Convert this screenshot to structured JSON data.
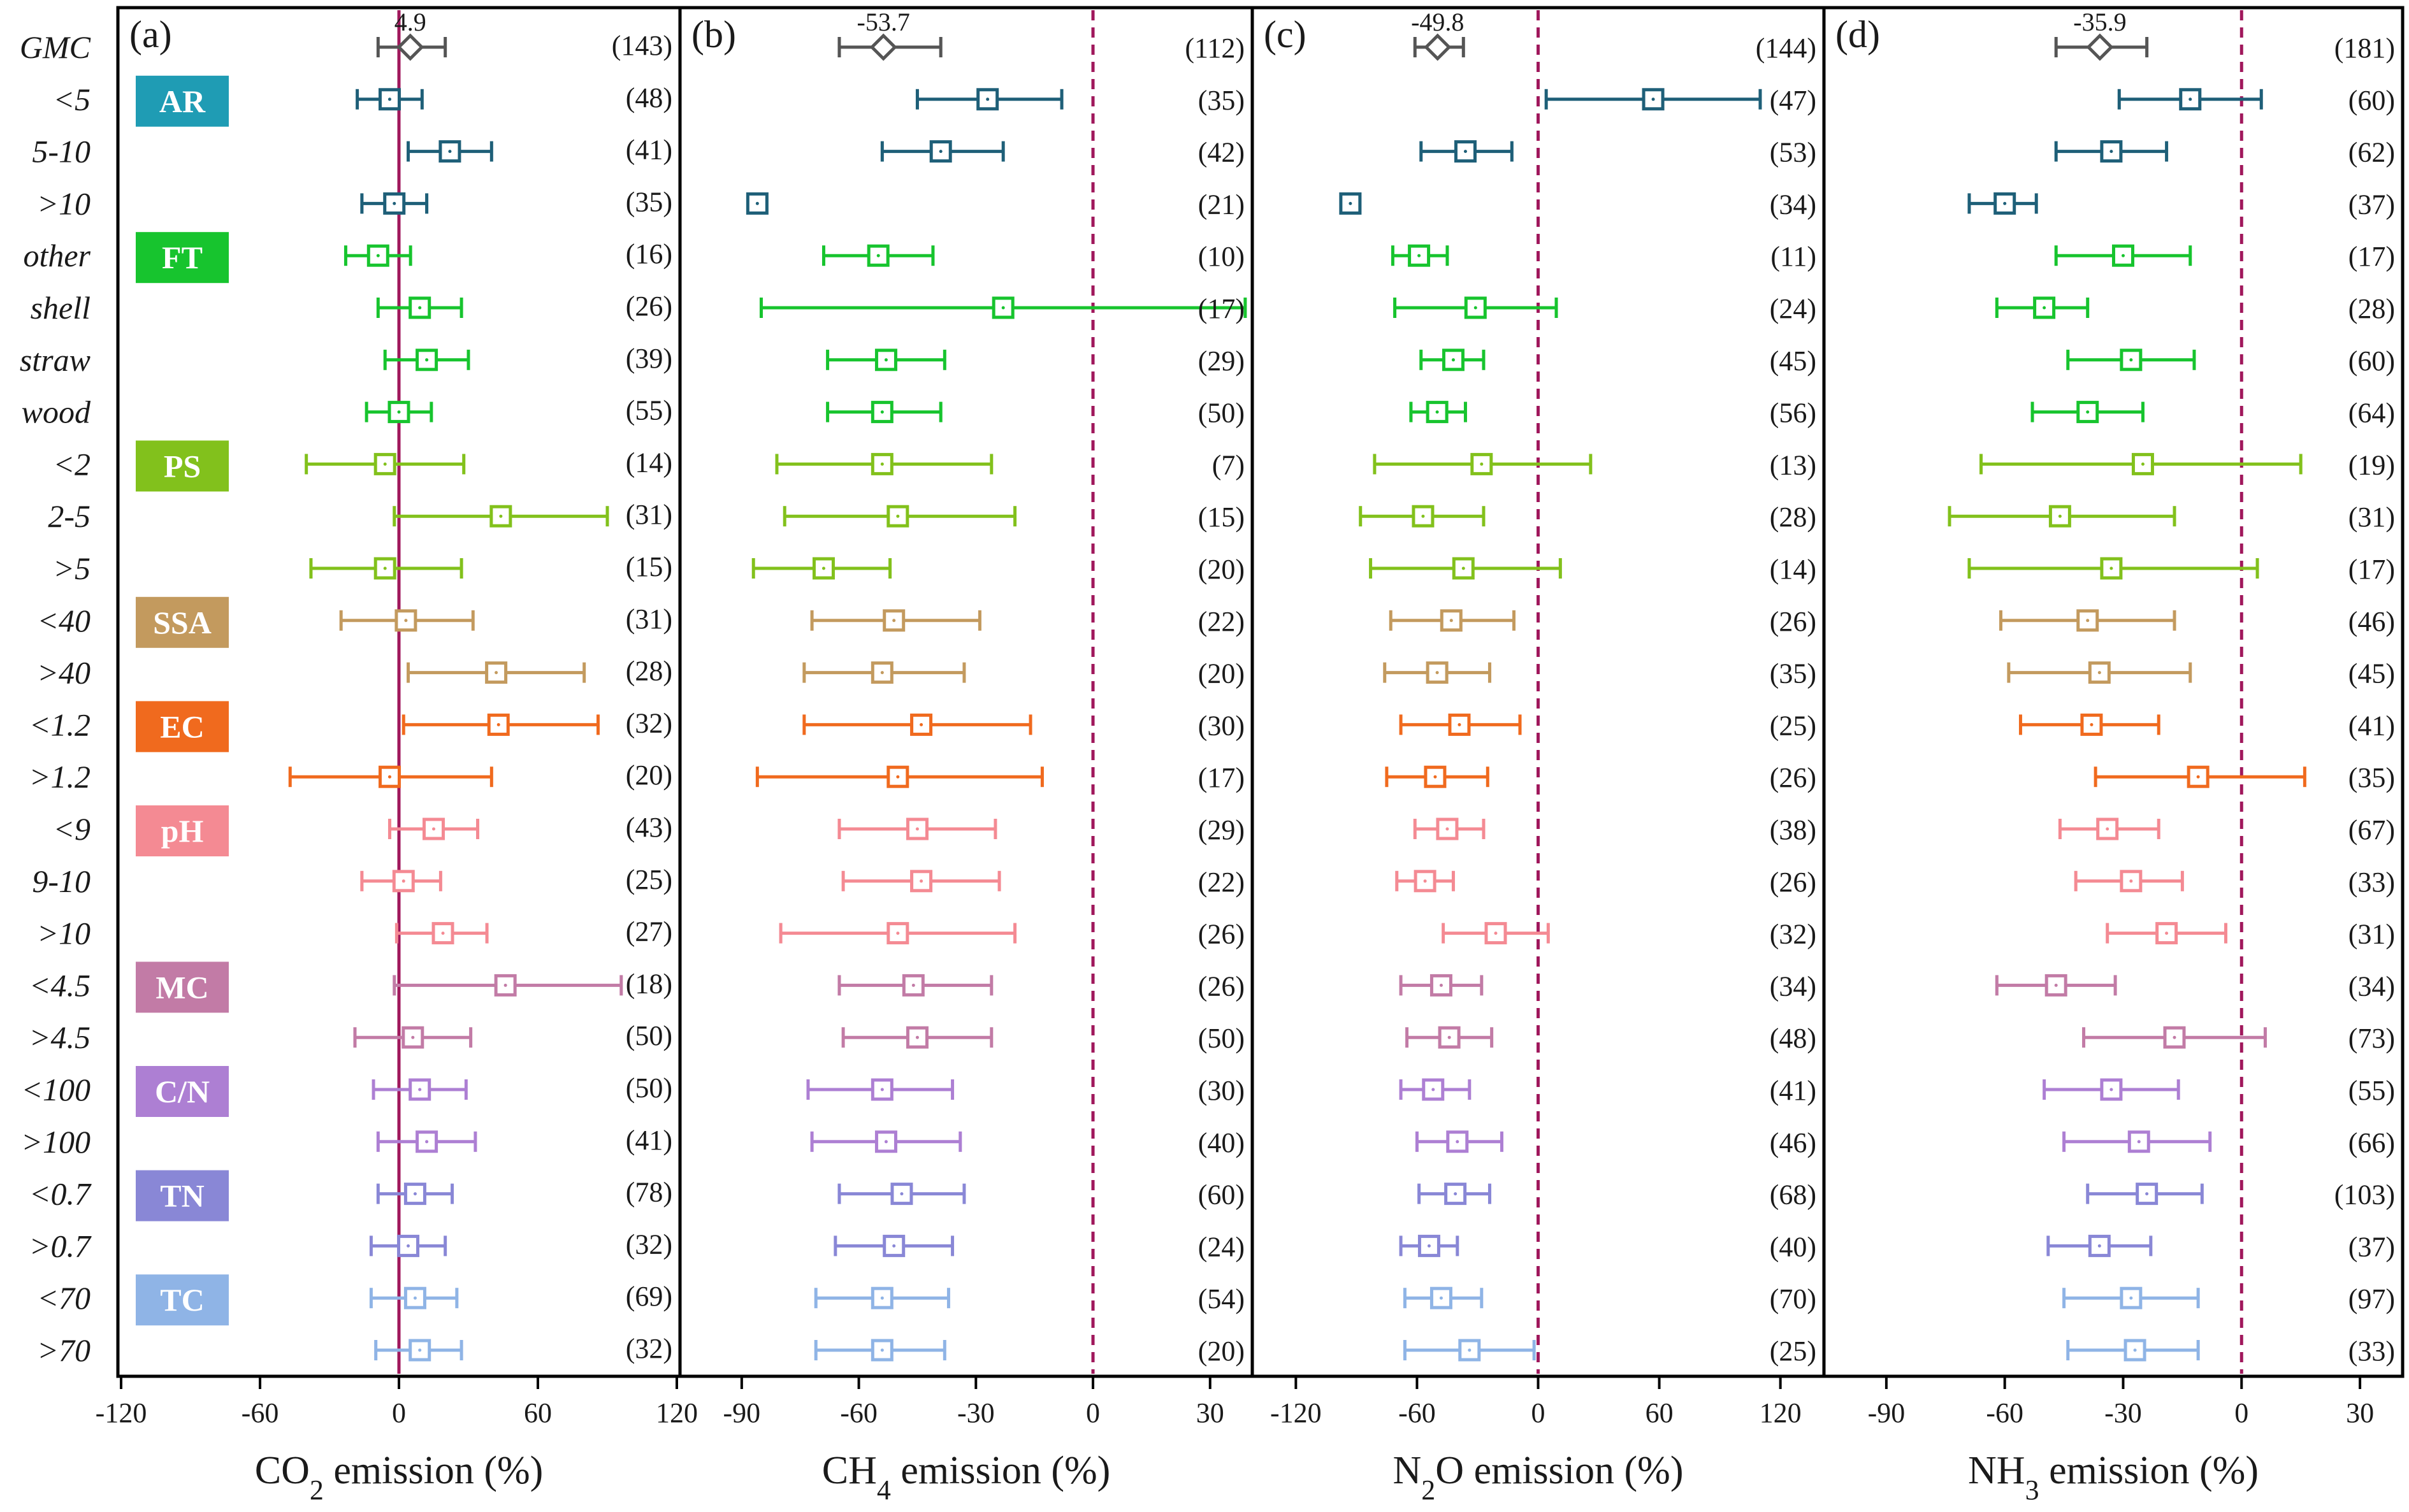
{
  "chart_data": {
    "type": "forest",
    "rows": [
      "GMC",
      "<5",
      "5-10",
      ">10",
      "other",
      "shell",
      "straw",
      "wood",
      "<2",
      "2-5",
      ">5",
      "<40",
      ">40",
      "<1.2",
      ">1.2",
      "<9",
      "9-10",
      ">10",
      "<4.5",
      ">4.5",
      "<100",
      ">100",
      "<0.7",
      ">0.7",
      "<70",
      ">70"
    ],
    "groups": [
      {
        "label": "AR",
        "row": 1,
        "color": "#1f9cb4"
      },
      {
        "label": "FT",
        "row": 4,
        "color": "#17c42e"
      },
      {
        "label": "PS",
        "row": 8,
        "color": "#82c11c"
      },
      {
        "label": "SSA",
        "row": 11,
        "color": "#c39a5e"
      },
      {
        "label": "EC",
        "row": 13,
        "color": "#f06a1e"
      },
      {
        "label": "pH",
        "row": 15,
        "color": "#f48a93"
      },
      {
        "label": "MC",
        "row": 18,
        "color": "#c27ba6"
      },
      {
        "label": "C/N",
        "row": 20,
        "color": "#ad7fd3"
      },
      {
        "label": "TN",
        "row": 22,
        "color": "#8987d6"
      },
      {
        "label": "TC",
        "row": 24,
        "color": "#8fb4e6"
      }
    ],
    "row_colors": [
      "#555555",
      "#1e5f78",
      "#1e5f78",
      "#1e5f78",
      "#17c42e",
      "#17c42e",
      "#17c42e",
      "#17c42e",
      "#82c11c",
      "#82c11c",
      "#82c11c",
      "#c39a5e",
      "#c39a5e",
      "#f06a1e",
      "#f06a1e",
      "#f48a93",
      "#f48a93",
      "#f48a93",
      "#c27ba6",
      "#c27ba6",
      "#ad7fd3",
      "#ad7fd3",
      "#8987d6",
      "#8987d6",
      "#8fb4e6",
      "#8fb4e6"
    ],
    "panels": [
      {
        "label": "(a)",
        "gas": "CO2",
        "xlabel_pre": "CO",
        "xlabel_sub": "2",
        "xlabel_post": " emission (%)",
        "xlim": [
          -120,
          120
        ],
        "ticks": [
          "-120",
          "-60",
          "0",
          "60",
          "120"
        ],
        "gmc_value": "4.9",
        "ref_line": "solid",
        "means": [
          4.9,
          -4,
          22,
          -2,
          -9,
          9,
          12,
          0,
          -6,
          44,
          -6,
          3,
          42,
          43,
          -4,
          15,
          2,
          19,
          46,
          6,
          9,
          12,
          7,
          4,
          7,
          9
        ],
        "lows": [
          -9,
          -18,
          4,
          -16,
          -23,
          -9,
          -6,
          -14,
          -40,
          -2,
          -38,
          -25,
          4,
          2,
          -47,
          -4,
          -16,
          -1,
          -2,
          -19,
          -11,
          -9,
          -9,
          -12,
          -12,
          -10
        ],
        "highs": [
          20,
          10,
          40,
          12,
          5,
          27,
          30,
          14,
          28,
          90,
          27,
          32,
          80,
          86,
          40,
          34,
          18,
          38,
          96,
          31,
          29,
          33,
          23,
          20,
          25,
          27
        ],
        "counts": [
          "(143)",
          "(48)",
          "(41)",
          "(35)",
          "(16)",
          "(26)",
          "(39)",
          "(55)",
          "(14)",
          "(31)",
          "(15)",
          "(31)",
          "(28)",
          "(32)",
          "(20)",
          "(43)",
          "(25)",
          "(27)",
          "(18)",
          "(50)",
          "(50)",
          "(41)",
          "(78)",
          "(32)",
          "(69)",
          "(32)"
        ]
      },
      {
        "label": "(b)",
        "gas": "CH4",
        "xlabel_pre": "CH",
        "xlabel_sub": "4",
        "xlabel_post": " emission (%)",
        "xlim": [
          -105,
          40
        ],
        "ticks": [
          "-90",
          "-60",
          "-30",
          "0",
          "30"
        ],
        "gmc_value": "-53.7",
        "ref_line": "dashed",
        "means": [
          -53.7,
          -27,
          -39,
          -86,
          -55,
          -23,
          -53,
          -54,
          -54,
          -50,
          -69,
          -51,
          -54,
          -44,
          -50,
          -45,
          -44,
          -50,
          -46,
          -45,
          -54,
          -53,
          -49,
          -51,
          -54,
          -54
        ],
        "lows": [
          -65,
          -45,
          -54,
          -88,
          -69,
          -85,
          -68,
          -68,
          -81,
          -79,
          -87,
          -72,
          -74,
          -74,
          -86,
          -65,
          -64,
          -80,
          -65,
          -64,
          -73,
          -72,
          -65,
          -66,
          -71,
          -71
        ],
        "highs": [
          -39,
          -8,
          -23,
          -84,
          -41,
          39,
          -38,
          -39,
          -26,
          -20,
          -52,
          -29,
          -33,
          -16,
          -13,
          -25,
          -24,
          -20,
          -26,
          -26,
          -36,
          -34,
          -33,
          -36,
          -37,
          -38
        ],
        "counts": [
          "(112)",
          "(35)",
          "(42)",
          "(21)",
          "(10)",
          "(17)",
          "(29)",
          "(50)",
          "(7)",
          "(15)",
          "(20)",
          "(22)",
          "(20)",
          "(30)",
          "(17)",
          "(29)",
          "(22)",
          "(26)",
          "(26)",
          "(50)",
          "(30)",
          "(40)",
          "(60)",
          "(24)",
          "(54)",
          "(20)"
        ]
      },
      {
        "label": "(c)",
        "gas": "N2O",
        "xlabel_pre": "N",
        "xlabel_sub": "2",
        "xlabel_post": "O emission (%)",
        "xlim": [
          -140,
          140
        ],
        "ticks": [
          "-120",
          "-60",
          "0",
          "60",
          "120"
        ],
        "gmc_value": "-49.8",
        "ref_line": "dashed",
        "means": [
          -49.8,
          57,
          -36,
          -93,
          -59,
          -31,
          -42,
          -50,
          -28,
          -57,
          -37,
          -43,
          -50,
          -39,
          -51,
          -45,
          -56,
          -21,
          -48,
          -44,
          -52,
          -40,
          -41,
          -54,
          -48,
          -34
        ],
        "lows": [
          -61,
          4,
          -58,
          -95,
          -72,
          -71,
          -58,
          -63,
          -81,
          -88,
          -83,
          -73,
          -76,
          -68,
          -75,
          -61,
          -70,
          -47,
          -68,
          -65,
          -68,
          -60,
          -59,
          -68,
          -66,
          -66
        ],
        "highs": [
          -37,
          110,
          -13,
          -91,
          -45,
          9,
          -27,
          -36,
          26,
          -27,
          11,
          -12,
          -24,
          -9,
          -25,
          -27,
          -42,
          5,
          -28,
          -23,
          -34,
          -18,
          -24,
          -40,
          -28,
          -2
        ],
        "counts": [
          "(144)",
          "(47)",
          "(53)",
          "(34)",
          "(11)",
          "(24)",
          "(45)",
          "(56)",
          "(13)",
          "(28)",
          "(14)",
          "(26)",
          "(35)",
          "(25)",
          "(26)",
          "(38)",
          "(26)",
          "(32)",
          "(34)",
          "(48)",
          "(41)",
          "(46)",
          "(68)",
          "(40)",
          "(70)",
          "(25)"
        ]
      },
      {
        "label": "(d)",
        "gas": "NH3",
        "xlabel_pre": "NH",
        "xlabel_sub": "3",
        "xlabel_post": " emission (%)",
        "xlim": [
          -105,
          40
        ],
        "ticks": [
          "-90",
          "-60",
          "-30",
          "0",
          "30"
        ],
        "gmc_value": "-35.9",
        "ref_line": "dashed",
        "means": [
          -35.9,
          -13,
          -33,
          -60,
          -30,
          -50,
          -28,
          -39,
          -25,
          -46,
          -33,
          -39,
          -36,
          -38,
          -11,
          -34,
          -28,
          -19,
          -47,
          -17,
          -33,
          -26,
          -24,
          -36,
          -28,
          -27
        ],
        "lows": [
          -47,
          -31,
          -47,
          -69,
          -47,
          -62,
          -44,
          -53,
          -66,
          -74,
          -69,
          -61,
          -59,
          -56,
          -37,
          -46,
          -42,
          -34,
          -62,
          -40,
          -50,
          -45,
          -39,
          -49,
          -45,
          -44
        ],
        "highs": [
          -24,
          5,
          -19,
          -52,
          -13,
          -39,
          -12,
          -25,
          15,
          -17,
          4,
          -17,
          -13,
          -21,
          16,
          -21,
          -15,
          -4,
          -32,
          6,
          -16,
          -8,
          -10,
          -23,
          -11,
          -11
        ],
        "counts": [
          "(181)",
          "(60)",
          "(62)",
          "(37)",
          "(17)",
          "(28)",
          "(60)",
          "(64)",
          "(19)",
          "(31)",
          "(17)",
          "(46)",
          "(45)",
          "(41)",
          "(35)",
          "(67)",
          "(33)",
          "(31)",
          "(34)",
          "(73)",
          "(55)",
          "(66)",
          "(103)",
          "(37)",
          "(97)",
          "(33)"
        ]
      }
    ]
  }
}
